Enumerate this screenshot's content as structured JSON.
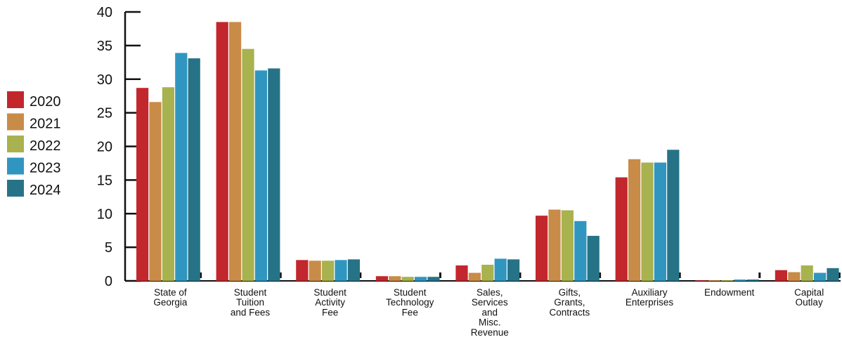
{
  "chart_data": {
    "type": "bar",
    "title": "",
    "xlabel": "",
    "ylabel": "",
    "ylim": [
      0,
      40
    ],
    "yticks": [
      "0",
      "5",
      "10",
      "15",
      "20",
      "25",
      "30",
      "35",
      "40"
    ],
    "grid": false,
    "legend_position": "left",
    "categories": [
      [
        "State of",
        "Georgia"
      ],
      [
        "Student",
        "Tuition",
        "and Fees"
      ],
      [
        "Student",
        "Activity",
        "Fee"
      ],
      [
        "Student",
        "Technology",
        "Fee"
      ],
      [
        "Sales,",
        "Services",
        "and",
        "Misc.",
        "Revenue"
      ],
      [
        "Gifts,",
        "Grants,",
        "Contracts"
      ],
      [
        "Auxiliary",
        "Enterprises"
      ],
      [
        "Endowment"
      ],
      [
        "Capital",
        "Outlay"
      ]
    ],
    "series": [
      {
        "name": "2020",
        "color": "#c1272d",
        "values": [
          28.7,
          38.5,
          3.1,
          0.7,
          2.3,
          9.7,
          15.4,
          0.1,
          1.6
        ]
      },
      {
        "name": "2021",
        "color": "#c98b48",
        "values": [
          26.6,
          38.5,
          3.0,
          0.7,
          1.2,
          10.6,
          18.1,
          0.1,
          1.3
        ]
      },
      {
        "name": "2022",
        "color": "#a8b24e",
        "values": [
          28.8,
          34.5,
          3.0,
          0.6,
          2.4,
          10.5,
          17.6,
          0.1,
          2.3
        ]
      },
      {
        "name": "2023",
        "color": "#3096c0",
        "values": [
          33.9,
          31.3,
          3.1,
          0.6,
          3.3,
          8.9,
          17.6,
          0.2,
          1.2
        ]
      },
      {
        "name": "2024",
        "color": "#267387",
        "values": [
          33.1,
          31.6,
          3.2,
          0.6,
          3.2,
          6.7,
          19.5,
          0.2,
          1.9
        ]
      }
    ]
  }
}
